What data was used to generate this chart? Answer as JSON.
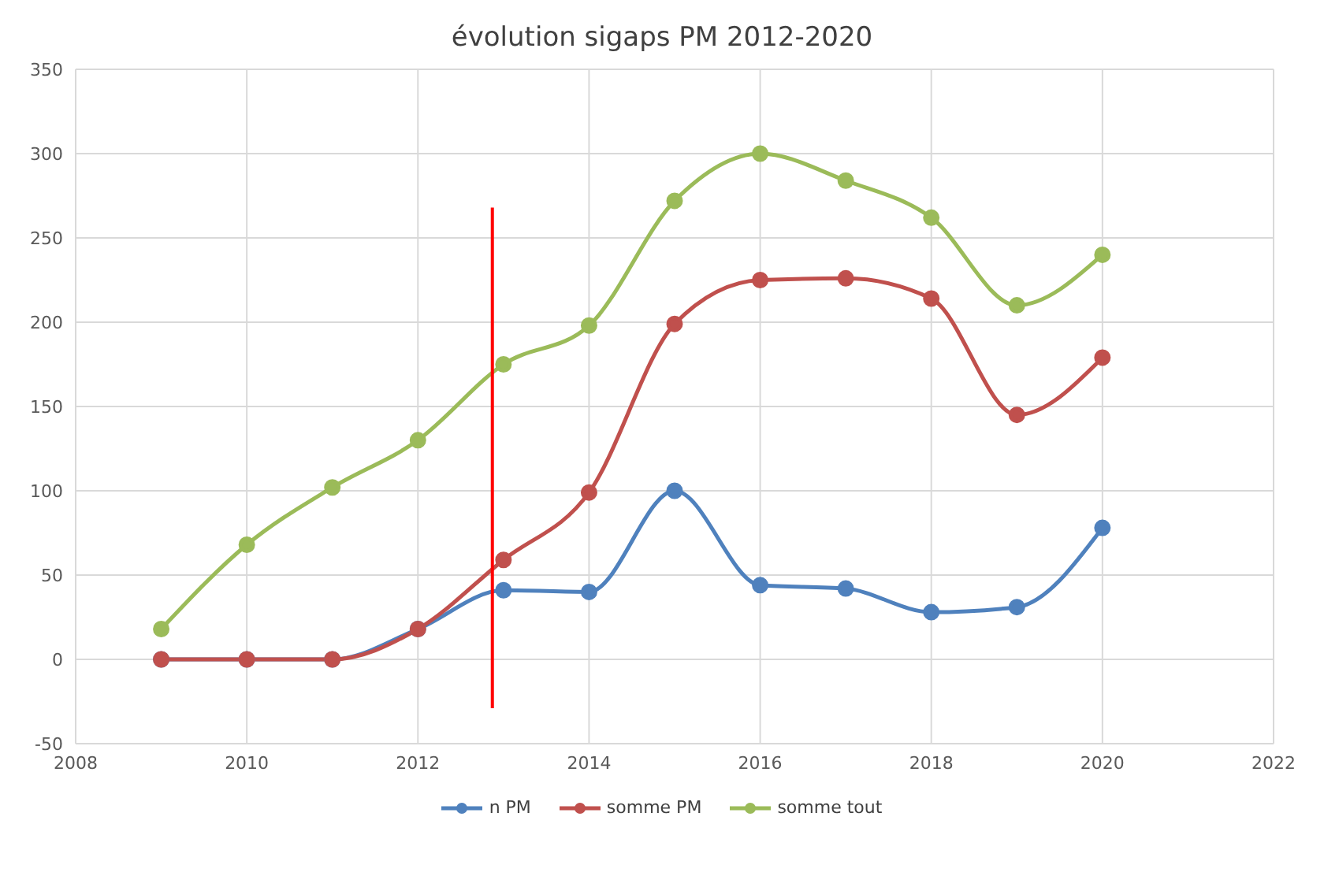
{
  "chart_data": {
    "type": "line",
    "title": "évolution sigaps PM  2012-2020",
    "x": [
      2009,
      2010,
      2011,
      2012,
      2013,
      2014,
      2015,
      2016,
      2017,
      2018,
      2019,
      2020
    ],
    "series": [
      {
        "name": "n PM",
        "color": "#4f81bd",
        "values": [
          0,
          0,
          0,
          18,
          41,
          40,
          100,
          44,
          42,
          28,
          31,
          78
        ]
      },
      {
        "name": "somme PM",
        "color": "#c0504d",
        "values": [
          0,
          0,
          0,
          18,
          59,
          99,
          199,
          225,
          226,
          214,
          145,
          179
        ]
      },
      {
        "name": "somme tout",
        "color": "#9bbb59",
        "values": [
          18,
          68,
          102,
          130,
          175,
          198,
          272,
          300,
          284,
          262,
          210,
          240
        ]
      },
      {
        "color": "#ff0000",
        "x": [
          2012.87,
          2012.87
        ],
        "values": [
          -29,
          268
        ],
        "marker": "none"
      }
    ],
    "xlim": [
      2008,
      2022
    ],
    "xticks": [
      2008,
      2010,
      2012,
      2014,
      2016,
      2018,
      2020,
      2022
    ],
    "ylim": [
      -50,
      350
    ],
    "yticks": [
      -50,
      0,
      50,
      100,
      150,
      200,
      250,
      300,
      350
    ],
    "grid": true,
    "legend": "bottom",
    "marker": "circle",
    "line_style": "solid"
  }
}
